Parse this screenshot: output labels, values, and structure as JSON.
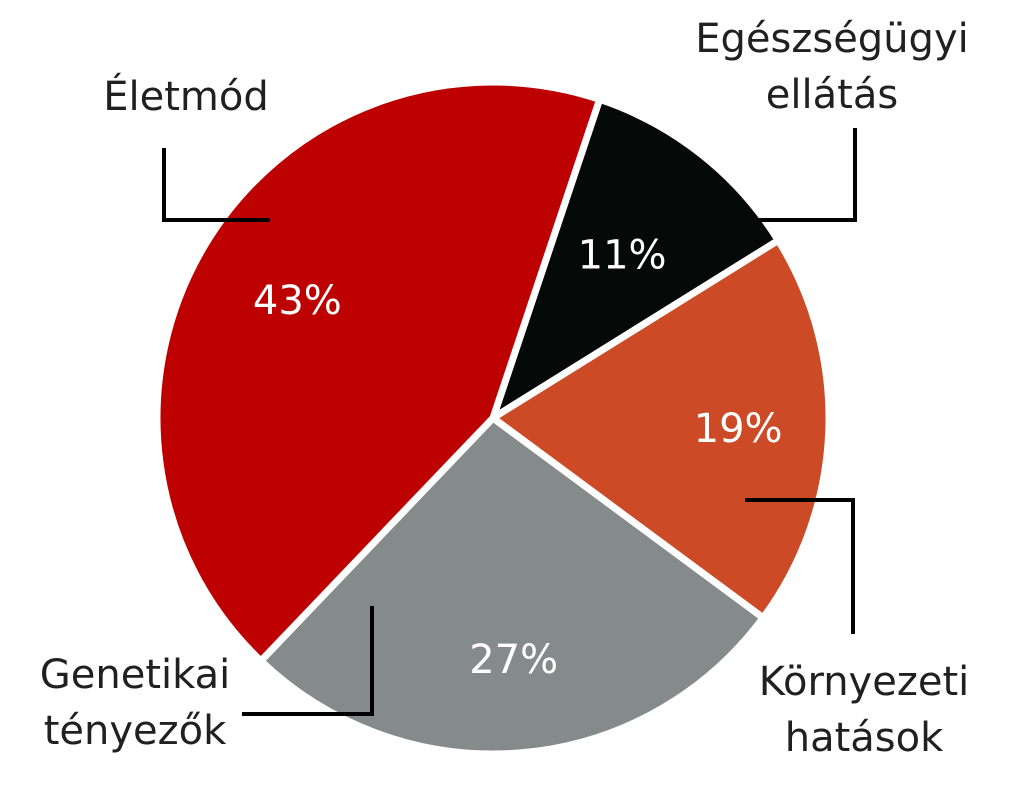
{
  "chart_data": {
    "type": "pie",
    "title": "",
    "slices": [
      {
        "label_lines": [
          "Életmód"
        ],
        "value": 43,
        "value_label": "43%",
        "color": "#bd0000"
      },
      {
        "label_lines": [
          "Egészségügyi",
          "ellátás"
        ],
        "value": 11,
        "value_label": "11%",
        "color": "#050908"
      },
      {
        "label_lines": [
          "Környezeti",
          "hatások"
        ],
        "value": 19,
        "value_label": "19%",
        "color": "#cc4a26"
      },
      {
        "label_lines": [
          "Genetikai",
          "tényezők"
        ],
        "value": 27,
        "value_label": "27%",
        "color": "#858b8a"
      }
    ]
  }
}
